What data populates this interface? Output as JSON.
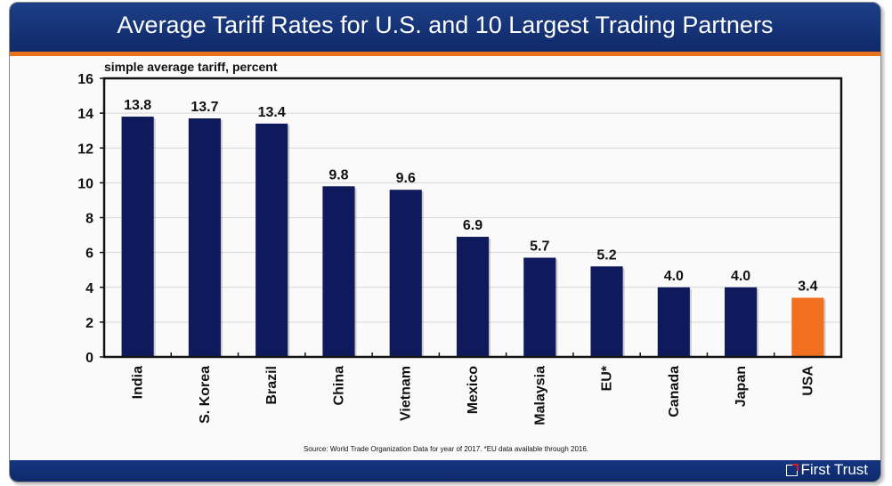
{
  "header": {
    "title": "Average Tariff Rates for U.S. and 10 Largest Trading Partners"
  },
  "footer": {
    "source": "Source: World Trade Organization Data for year of 2017. *EU data available through 2016.",
    "logo_text": "First Trust",
    "logo_icon": "first-trust-logo-icon"
  },
  "colors": {
    "bar": "#0f1a5c",
    "highlight": "#f07020",
    "accent": "#e8731c",
    "header": "#143581"
  },
  "chart_data": {
    "type": "bar",
    "title": "Average Tariff Rates for U.S. and 10 Largest Trading Partners",
    "ylabel": "simple average tariff, percent",
    "xlabel": "",
    "categories": [
      "India",
      "S. Korea",
      "Brazil",
      "China",
      "Vietnam",
      "Mexico",
      "Malaysia",
      "EU*",
      "Canada",
      "Japan",
      "USA"
    ],
    "values": [
      13.8,
      13.7,
      13.4,
      9.8,
      9.6,
      6.9,
      5.7,
      5.2,
      4.0,
      4.0,
      3.4
    ],
    "data_labels": [
      "13.8",
      "13.7",
      "13.4",
      "9.8",
      "9.6",
      "6.9",
      "5.7",
      "5.2",
      "4.0",
      "4.0",
      "3.4"
    ],
    "highlight_category": "USA",
    "ylim": [
      0,
      16
    ],
    "yticks": [
      0,
      2,
      4,
      6,
      8,
      10,
      12,
      14,
      16
    ],
    "grid": true,
    "legend": "none"
  }
}
